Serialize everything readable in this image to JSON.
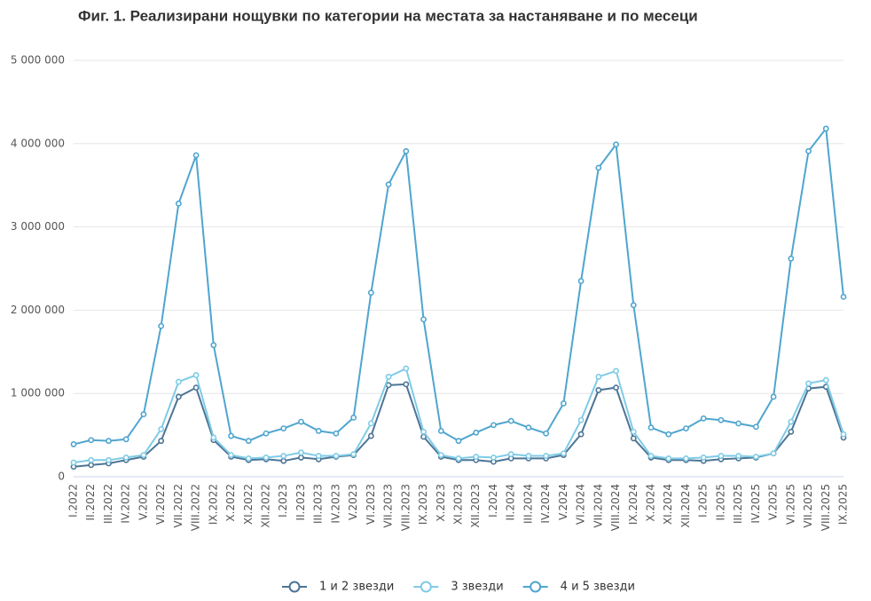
{
  "chart_data": {
    "type": "line",
    "title": "Фиг. 1. Реализирани нощувки по категории на местата за настаняване и по месеци",
    "categories": [
      "I.2022",
      "II.2022",
      "III.2022",
      "IV.2022",
      "V.2022",
      "VI.2022",
      "VII.2022",
      "VIII.2022",
      "IX.2022",
      "X.2022",
      "XI.2022",
      "XII.2022",
      "I.2023",
      "II.2023",
      "III.2023",
      "IV.2023",
      "V.2023",
      "VI.2023",
      "VII.2023",
      "VIII.2023",
      "IX.2023",
      "X.2023",
      "XI.2023",
      "XII.2023",
      "I.2024",
      "II.2024",
      "III.2024",
      "IV.2024",
      "V.2024",
      "VI.2024",
      "VII.2024",
      "VIII.2024",
      "IX.2024",
      "X.2024",
      "XI.2024",
      "XII.2024",
      "I.2025",
      "II.2025",
      "III.2025",
      "IV.2025",
      "V.2025",
      "VI.2025",
      "VII.2025",
      "VIII.2025",
      "IX.2025"
    ],
    "series": [
      {
        "name": "1 и 2 звезди",
        "color": "#4d7596",
        "values": [
          120000,
          140000,
          160000,
          200000,
          240000,
          430000,
          960000,
          1070000,
          440000,
          240000,
          200000,
          210000,
          190000,
          230000,
          210000,
          240000,
          260000,
          490000,
          1100000,
          1110000,
          480000,
          240000,
          200000,
          200000,
          180000,
          220000,
          220000,
          220000,
          260000,
          510000,
          1040000,
          1070000,
          460000,
          230000,
          200000,
          200000,
          190000,
          210000,
          220000,
          230000,
          280000,
          540000,
          1060000,
          1080000,
          470000
        ]
      },
      {
        "name": "3 звезди",
        "color": "#7fcbe6",
        "values": [
          170000,
          200000,
          200000,
          230000,
          260000,
          570000,
          1140000,
          1220000,
          470000,
          260000,
          220000,
          230000,
          250000,
          290000,
          250000,
          250000,
          270000,
          640000,
          1200000,
          1300000,
          540000,
          260000,
          220000,
          240000,
          230000,
          270000,
          250000,
          250000,
          280000,
          680000,
          1200000,
          1270000,
          540000,
          250000,
          220000,
          220000,
          230000,
          250000,
          250000,
          240000,
          280000,
          660000,
          1120000,
          1160000,
          510000
        ]
      },
      {
        "name": "4 и 5 звезди",
        "color": "#4fa5cf",
        "values": [
          390000,
          440000,
          430000,
          450000,
          750000,
          1810000,
          3280000,
          3860000,
          1580000,
          490000,
          430000,
          520000,
          580000,
          660000,
          550000,
          520000,
          710000,
          2210000,
          3510000,
          3910000,
          1890000,
          550000,
          430000,
          530000,
          620000,
          670000,
          590000,
          520000,
          880000,
          2350000,
          3710000,
          3990000,
          2060000,
          590000,
          510000,
          580000,
          700000,
          680000,
          640000,
          600000,
          960000,
          2620000,
          3910000,
          4180000,
          2160000
        ]
      }
    ],
    "ylim": [
      0,
      5000000
    ],
    "yticks": [
      0,
      {
        "value": 1000000,
        "label": "1 000 000"
      },
      {
        "value": 2000000,
        "label": "2 000 000"
      },
      {
        "value": 3000000,
        "label": "3 000 000"
      },
      {
        "value": 4000000,
        "label": "4 000 000"
      },
      {
        "value": 5000000,
        "label": "5 000 000"
      }
    ],
    "grid": true,
    "legend": "bottom"
  }
}
